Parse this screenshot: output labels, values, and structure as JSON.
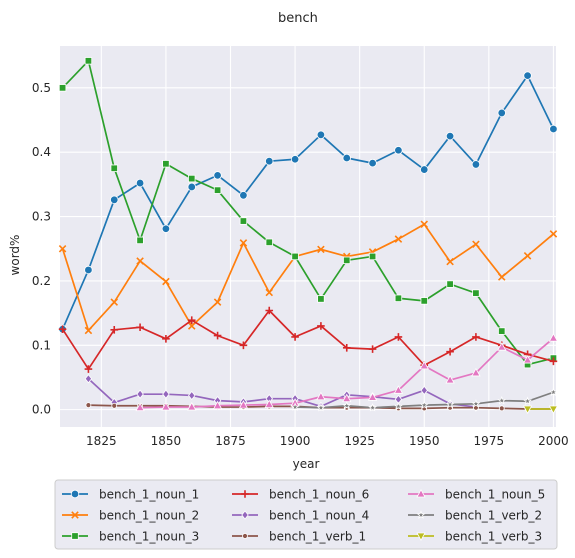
{
  "chart_data": {
    "type": "line",
    "title": "bench",
    "xlabel": "year",
    "ylabel": "word%",
    "xlim": [
      1809,
      2001
    ],
    "ylim": [
      -0.027,
      0.565
    ],
    "xticks": [
      1825,
      1850,
      1875,
      1900,
      1925,
      1950,
      1975,
      2000
    ],
    "yticks": [
      0.0,
      0.1,
      0.2,
      0.3,
      0.4,
      0.5
    ],
    "grid": true,
    "legend_position": "bottom-center",
    "x": [
      1810,
      1820,
      1830,
      1840,
      1850,
      1860,
      1870,
      1880,
      1890,
      1900,
      1910,
      1920,
      1930,
      1940,
      1950,
      1960,
      1970,
      1980,
      1990,
      2000
    ],
    "series": [
      {
        "name": "bench_1_noun_1",
        "color": "#1f77b4",
        "marker": "circle",
        "values": [
          0.125,
          0.217,
          0.326,
          0.352,
          0.281,
          0.346,
          0.364,
          0.333,
          0.386,
          0.389,
          0.427,
          0.391,
          0.383,
          0.403,
          0.373,
          0.425,
          0.381,
          0.461,
          0.519,
          0.436
        ]
      },
      {
        "name": "bench_1_noun_2",
        "color": "#ff7f0e",
        "marker": "x",
        "values": [
          0.25,
          0.123,
          0.167,
          0.231,
          0.199,
          0.13,
          0.167,
          0.259,
          0.182,
          0.238,
          0.249,
          0.238,
          0.245,
          0.265,
          0.288,
          0.23,
          0.257,
          0.206,
          0.239,
          0.273
        ]
      },
      {
        "name": "bench_1_noun_3",
        "color": "#2ca02c",
        "marker": "square",
        "values": [
          0.5,
          0.542,
          0.375,
          0.263,
          0.382,
          0.359,
          0.341,
          0.293,
          0.26,
          0.238,
          0.172,
          0.232,
          0.238,
          0.173,
          0.169,
          0.195,
          0.181,
          0.122,
          0.07,
          0.08
        ]
      },
      {
        "name": "bench_1_noun_6",
        "color": "#d62728",
        "marker": "plus",
        "values": [
          0.125,
          0.063,
          0.124,
          0.128,
          0.11,
          0.139,
          0.115,
          0.1,
          0.154,
          0.113,
          0.13,
          0.096,
          0.094,
          0.113,
          0.069,
          0.09,
          0.113,
          0.1,
          0.086,
          0.075
        ]
      },
      {
        "name": "bench_1_noun_4",
        "color": "#9467bd",
        "marker": "diamond",
        "values": [
          null,
          0.048,
          0.011,
          0.024,
          0.024,
          0.022,
          0.014,
          0.012,
          0.017,
          0.017,
          0.005,
          0.023,
          0.02,
          0.016,
          0.03,
          0.009,
          0.004,
          null,
          null,
          null
        ]
      },
      {
        "name": "bench_1_verb_1",
        "color": "#8c564b",
        "marker": "circle-small",
        "values": [
          null,
          0.007,
          0.006,
          0.006,
          0.006,
          0.005,
          0.004,
          0.004,
          0.005,
          0.005,
          0.003,
          0.003,
          0.003,
          0.002,
          0.002,
          0.003,
          0.003,
          0.002,
          0.001,
          0.001
        ]
      },
      {
        "name": "bench_1_noun_5",
        "color": "#e377c2",
        "marker": "triangle-up",
        "values": [
          null,
          null,
          null,
          0.003,
          0.004,
          0.004,
          0.006,
          0.007,
          0.008,
          0.01,
          0.02,
          0.017,
          0.019,
          0.03,
          0.068,
          0.046,
          0.057,
          0.097,
          0.077,
          0.111
        ]
      },
      {
        "name": "bench_1_verb_2",
        "color": "#7f7f7f",
        "marker": "star",
        "values": [
          null,
          null,
          null,
          null,
          null,
          null,
          null,
          null,
          null,
          0.004,
          0.003,
          0.006,
          0.003,
          0.005,
          0.007,
          0.008,
          0.009,
          0.014,
          0.013,
          0.027
        ]
      },
      {
        "name": "bench_1_verb_3",
        "color": "#bcbd22",
        "marker": "triangle-down",
        "values": [
          null,
          null,
          null,
          null,
          null,
          null,
          null,
          null,
          null,
          null,
          null,
          null,
          null,
          null,
          null,
          null,
          null,
          null,
          0.001,
          0.001
        ]
      }
    ]
  }
}
